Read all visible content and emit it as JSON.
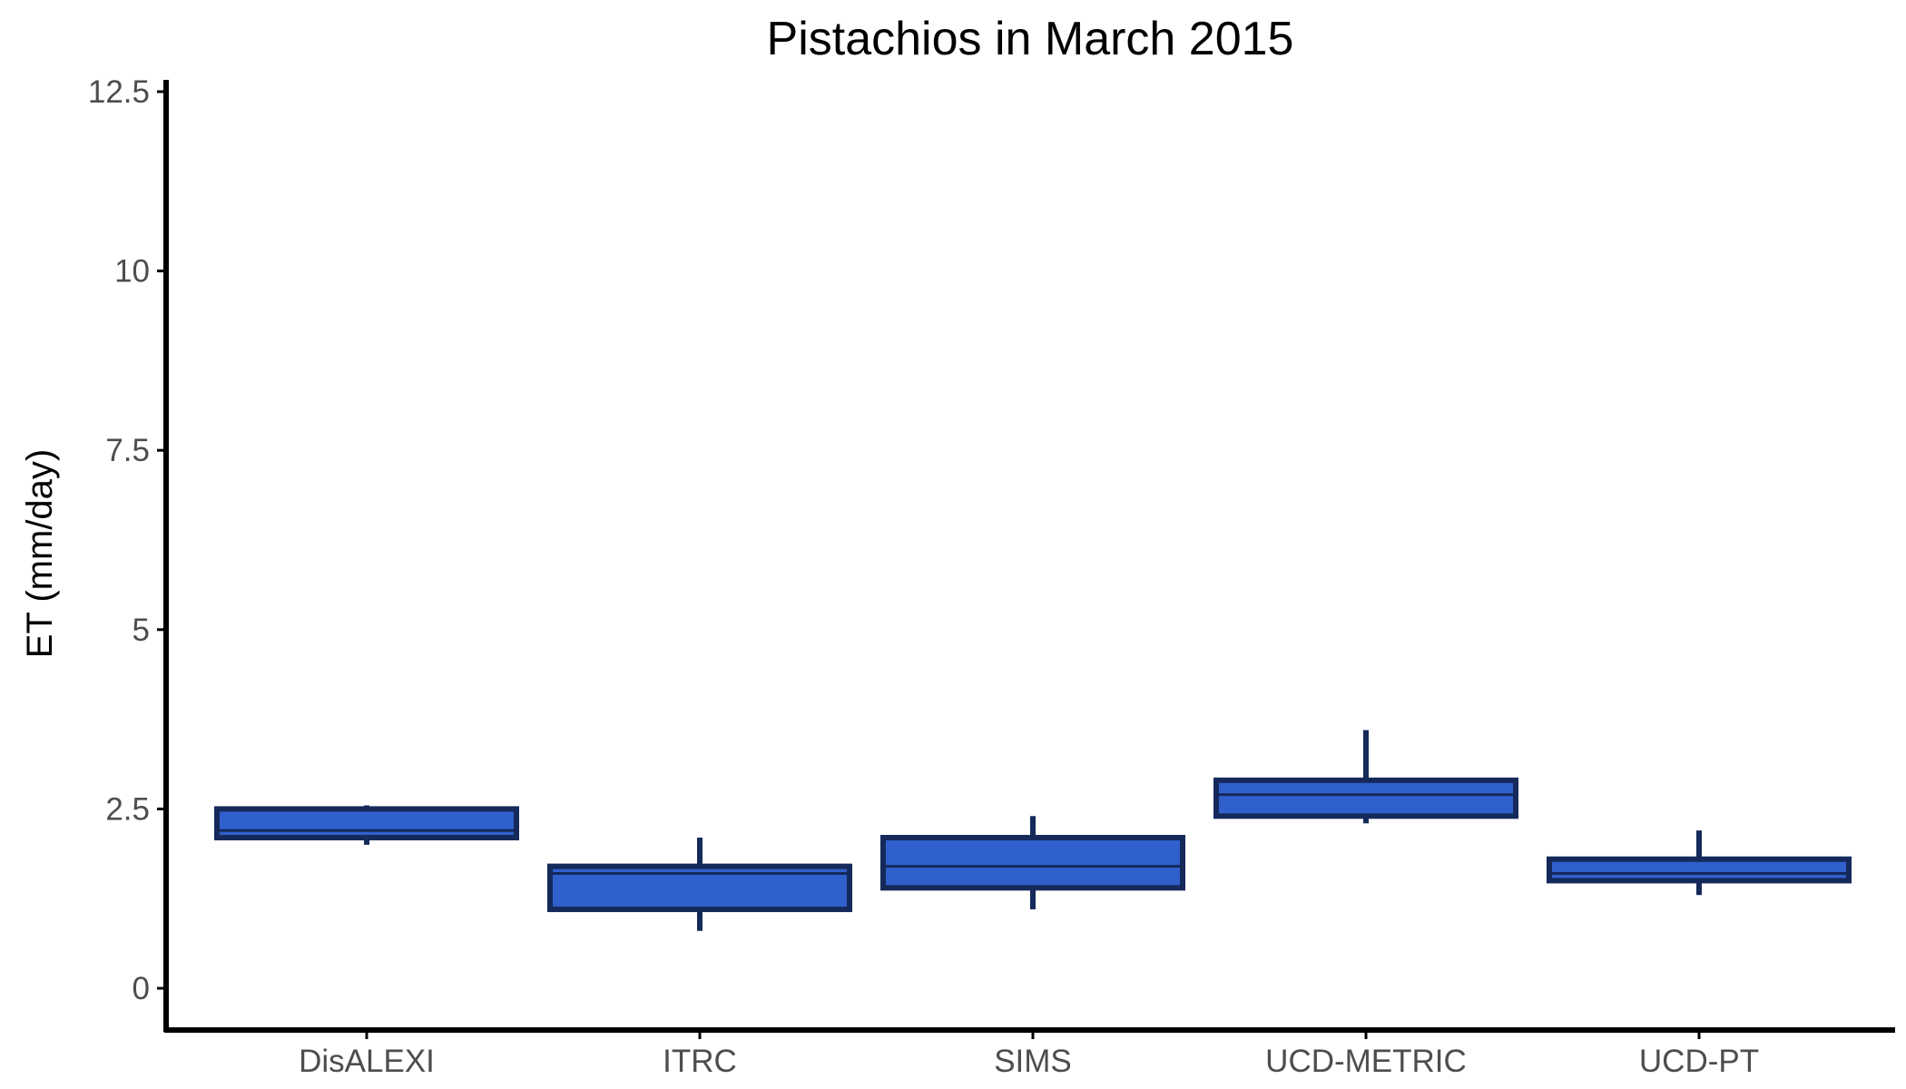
{
  "chart_data": {
    "type": "boxplot",
    "title": "Pistachios in March 2015",
    "xlabel": "",
    "ylabel": "ET (mm/day)",
    "ylim": [
      -0.6,
      12.7
    ],
    "yticks": [
      0,
      2.5,
      5,
      7.5,
      10,
      12.5
    ],
    "ytick_labels": [
      "0",
      "2.5",
      "5",
      "7.5",
      "10",
      "12.5"
    ],
    "categories": [
      "DisALEXI",
      "ITRC",
      "SIMS",
      "UCD-METRIC",
      "UCD-PT"
    ],
    "boxes": [
      {
        "category": "DisALEXI",
        "whisker_low": 2.0,
        "q1": 2.1,
        "median": 2.2,
        "q3": 2.5,
        "whisker_high": 2.55
      },
      {
        "category": "ITRC",
        "whisker_low": 0.8,
        "q1": 1.1,
        "median": 1.6,
        "q3": 1.7,
        "whisker_high": 2.1
      },
      {
        "category": "SIMS",
        "whisker_low": 1.1,
        "q1": 1.4,
        "median": 1.7,
        "q3": 2.1,
        "whisker_high": 2.4
      },
      {
        "category": "UCD-METRIC",
        "whisker_low": 2.3,
        "q1": 2.4,
        "median": 2.7,
        "q3": 2.9,
        "whisker_high": 3.6
      },
      {
        "category": "UCD-PT",
        "whisker_low": 1.3,
        "q1": 1.5,
        "median": 1.6,
        "q3": 1.8,
        "whisker_high": 2.2
      }
    ],
    "grid": false,
    "legend": "none",
    "colors": {
      "box_fill": "#3060cc",
      "box_outline": "#15295a",
      "axis": "#000000",
      "tick_label": "#4d4d4d"
    }
  }
}
